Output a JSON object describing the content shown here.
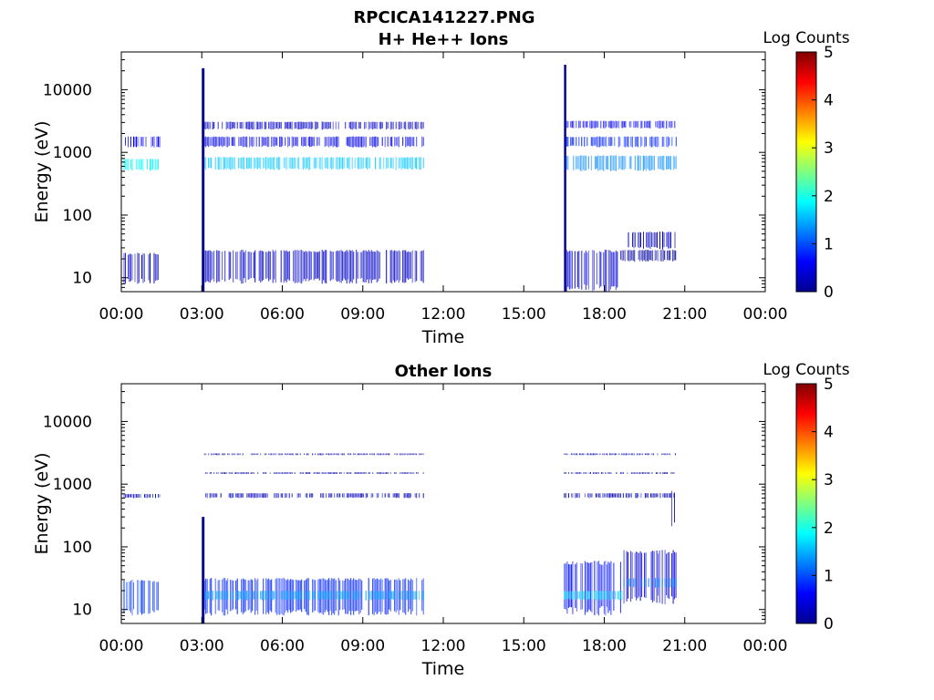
{
  "figure": {
    "title_line1": "RPCICA141227.PNG"
  },
  "colors": {
    "colormap": "jet",
    "axes": "#000000",
    "background": "#ffffff"
  },
  "chart_data": [
    {
      "type": "heatmap",
      "title": "H+ He++ Ions",
      "xlabel": "Time",
      "ylabel": "Energy (eV)",
      "xlim": [
        "00:00",
        "24:00"
      ],
      "x_tick_labels": [
        "00:00",
        "03:00",
        "06:00",
        "09:00",
        "12:00",
        "15:00",
        "18:00",
        "21:00",
        "00:00"
      ],
      "ylim": [
        6,
        40000
      ],
      "yscale": "log",
      "y_tick_labels": [
        "10",
        "100",
        "1000",
        "10000"
      ],
      "y_tick_values": [
        10,
        100,
        1000,
        10000
      ],
      "colorbar": {
        "label": "Log Counts",
        "range": [
          0,
          5
        ],
        "tick_labels": [
          "0",
          "1",
          "2",
          "3",
          "4",
          "5"
        ]
      },
      "grid": false,
      "bands": [
        {
          "t0": "00:05",
          "t1": "01:25",
          "e0": 500,
          "e1": 800,
          "c": 1.9
        },
        {
          "t0": "00:05",
          "t1": "01:25",
          "e0": 1200,
          "e1": 1800,
          "c": 0.6
        },
        {
          "t0": "00:05",
          "t1": "01:25",
          "e0": 8,
          "e1": 25,
          "c": 0.3
        },
        {
          "t0": "03:05",
          "t1": "11:15",
          "e0": 520,
          "e1": 850,
          "c": 1.6
        },
        {
          "t0": "03:05",
          "t1": "11:15",
          "e0": 1200,
          "e1": 1800,
          "c": 0.5
        },
        {
          "t0": "03:05",
          "t1": "11:15",
          "e0": 2300,
          "e1": 3100,
          "c": 0.35
        },
        {
          "t0": "03:05",
          "t1": "11:15",
          "e0": 8,
          "e1": 28,
          "c": 0.35
        },
        {
          "t0": "03:00",
          "t1": "03:06",
          "e0": 6,
          "e1": 22000,
          "c": 0.05
        },
        {
          "t0": "16:30",
          "t1": "16:35",
          "e0": 6,
          "e1": 25000,
          "c": 0.05
        },
        {
          "t0": "16:35",
          "t1": "20:40",
          "e0": 500,
          "e1": 900,
          "c": 1.3
        },
        {
          "t0": "16:35",
          "t1": "20:40",
          "e0": 1200,
          "e1": 1800,
          "c": 0.8
        },
        {
          "t0": "16:35",
          "t1": "20:40",
          "e0": 2400,
          "e1": 3200,
          "c": 0.6
        },
        {
          "t0": "16:35",
          "t1": "18:30",
          "e0": 6,
          "e1": 28,
          "c": 0.4
        },
        {
          "t0": "18:30",
          "t1": "20:40",
          "e0": 18,
          "e1": 28,
          "c": 0.15
        },
        {
          "t0": "18:50",
          "t1": "20:40",
          "e0": 28,
          "e1": 55,
          "c": 0.3
        }
      ]
    },
    {
      "type": "heatmap",
      "title": "Other Ions",
      "xlabel": "Time",
      "ylabel": "Energy (eV)",
      "xlim": [
        "00:00",
        "24:00"
      ],
      "x_tick_labels": [
        "00:00",
        "03:00",
        "06:00",
        "09:00",
        "12:00",
        "15:00",
        "18:00",
        "21:00",
        "00:00"
      ],
      "ylim": [
        6,
        40000
      ],
      "yscale": "log",
      "y_tick_labels": [
        "10",
        "100",
        "1000",
        "10000"
      ],
      "y_tick_values": [
        10,
        100,
        1000,
        10000
      ],
      "colorbar": {
        "label": "Log Counts",
        "range": [
          0,
          5
        ],
        "tick_labels": [
          "0",
          "1",
          "2",
          "3",
          "4",
          "5"
        ]
      },
      "grid": false,
      "bands": [
        {
          "t0": "00:05",
          "t1": "01:25",
          "e0": 8,
          "e1": 30,
          "c": 0.9
        },
        {
          "t0": "00:05",
          "t1": "01:25",
          "e0": 600,
          "e1": 700,
          "c": 0.3
        },
        {
          "t0": "03:05",
          "t1": "11:15",
          "e0": 8,
          "e1": 32,
          "c": 0.8
        },
        {
          "t0": "03:05",
          "t1": "11:15",
          "e0": 14,
          "e1": 20,
          "c": 1.4
        },
        {
          "t0": "03:05",
          "t1": "11:15",
          "e0": 600,
          "e1": 720,
          "c": 0.3
        },
        {
          "t0": "03:05",
          "t1": "11:15",
          "e0": 1450,
          "e1": 1550,
          "c": 0.2
        },
        {
          "t0": "03:05",
          "t1": "11:15",
          "e0": 2900,
          "e1": 3100,
          "c": 0.2
        },
        {
          "t0": "03:00",
          "t1": "03:06",
          "e0": 6,
          "e1": 300,
          "c": 0.05
        },
        {
          "t0": "16:30",
          "t1": "18:40",
          "e0": 8,
          "e1": 60,
          "c": 0.7
        },
        {
          "t0": "16:30",
          "t1": "18:40",
          "e0": 14,
          "e1": 20,
          "c": 1.7
        },
        {
          "t0": "18:40",
          "t1": "20:40",
          "e0": 12,
          "e1": 90,
          "c": 0.4
        },
        {
          "t0": "18:40",
          "t1": "20:40",
          "e0": 22,
          "e1": 32,
          "c": 1.2
        },
        {
          "t0": "16:30",
          "t1": "20:40",
          "e0": 2900,
          "e1": 3100,
          "c": 0.3
        },
        {
          "t0": "16:30",
          "t1": "20:40",
          "e0": 1450,
          "e1": 1550,
          "c": 0.2
        },
        {
          "t0": "16:30",
          "t1": "20:40",
          "e0": 600,
          "e1": 720,
          "c": 0.25
        },
        {
          "t0": "20:30",
          "t1": "20:40",
          "e0": 200,
          "e1": 800,
          "c": 0.2
        }
      ]
    }
  ]
}
